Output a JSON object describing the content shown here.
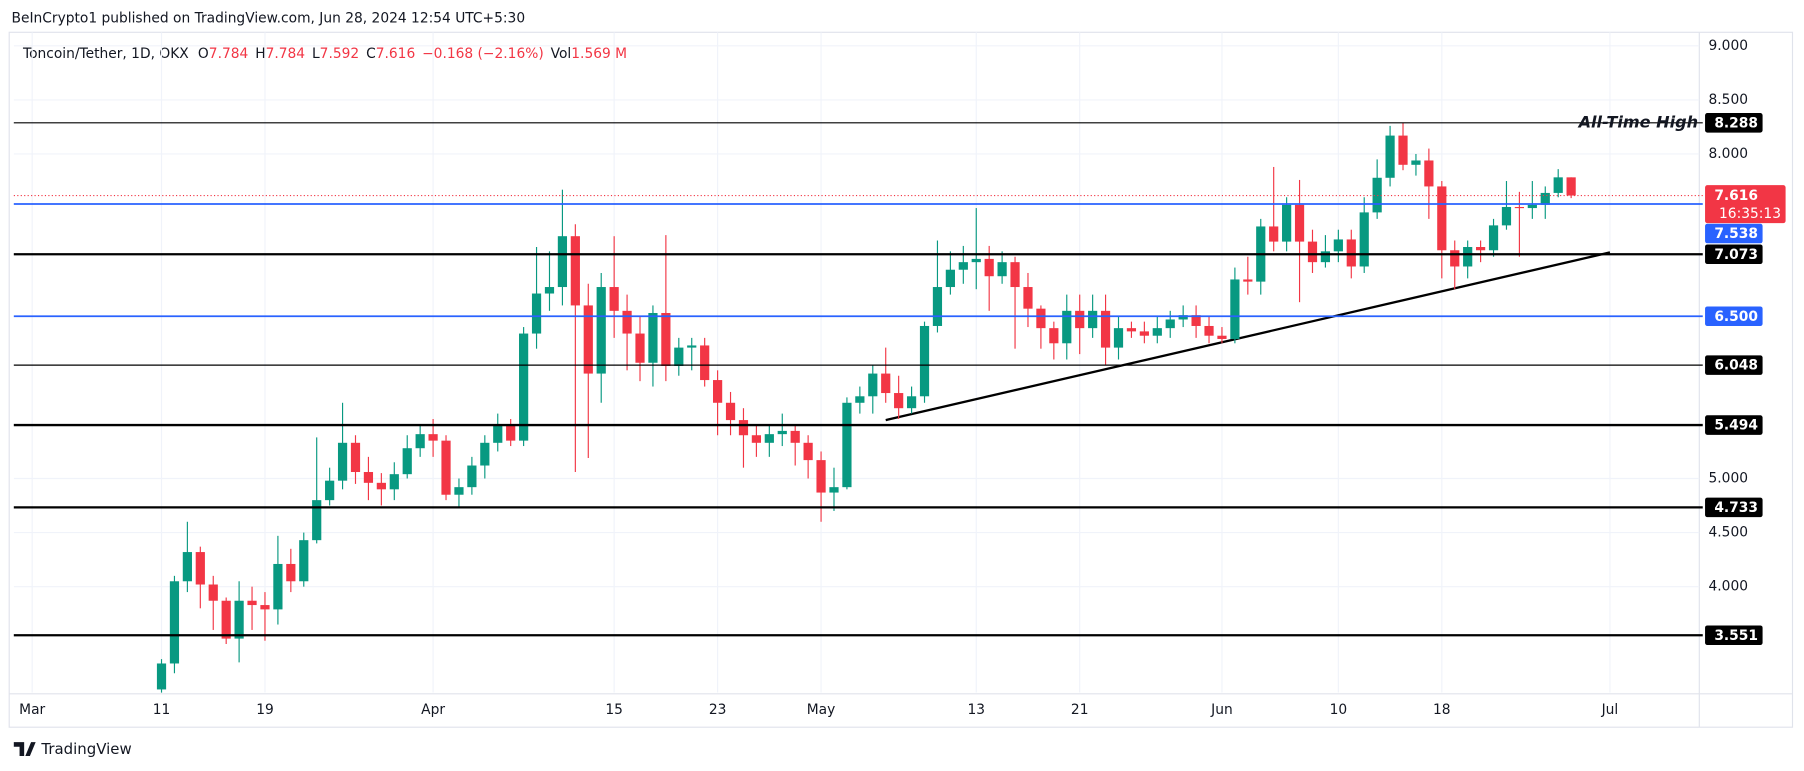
{
  "header": "BeInCrypto1 published on TradingView.com, Jun 28, 2024 12:54 UTC+5:30",
  "footer": "TradingView",
  "chart_data": {
    "type": "candlestick",
    "legend": {
      "symbol": "Toncoin/Tether, 1D, OKX",
      "o": "O",
      "h": "H",
      "l": "L",
      "c": "C",
      "change": "−0.168 (−2.16%)",
      "vol_label": "Vol",
      "volume": "1.569 M"
    },
    "up_color": "#089981",
    "down_color": "#f23645",
    "x": [
      "2024-03-11",
      "2024-03-12",
      "2024-03-13",
      "2024-03-14",
      "2024-03-15",
      "2024-03-16",
      "2024-03-17",
      "2024-03-18",
      "2024-03-19",
      "2024-03-20",
      "2024-03-21",
      "2024-03-22",
      "2024-03-23",
      "2024-03-24",
      "2024-03-25",
      "2024-03-26",
      "2024-03-27",
      "2024-03-28",
      "2024-03-29",
      "2024-03-30",
      "2024-03-31",
      "2024-04-01",
      "2024-04-02",
      "2024-04-03",
      "2024-04-04",
      "2024-04-05",
      "2024-04-06",
      "2024-04-07",
      "2024-04-08",
      "2024-04-09",
      "2024-04-10",
      "2024-04-11",
      "2024-04-12",
      "2024-04-13",
      "2024-04-14",
      "2024-04-15",
      "2024-04-16",
      "2024-04-17",
      "2024-04-18",
      "2024-04-19",
      "2024-04-20",
      "2024-04-21",
      "2024-04-22",
      "2024-04-23",
      "2024-04-24",
      "2024-04-25",
      "2024-04-26",
      "2024-04-27",
      "2024-04-28",
      "2024-04-29",
      "2024-04-30",
      "2024-05-01",
      "2024-05-02",
      "2024-05-03",
      "2024-05-04",
      "2024-05-05",
      "2024-05-06",
      "2024-05-07",
      "2024-05-08",
      "2024-05-09",
      "2024-05-10",
      "2024-05-11",
      "2024-05-12",
      "2024-05-13",
      "2024-05-14",
      "2024-05-15",
      "2024-05-16",
      "2024-05-17",
      "2024-05-18",
      "2024-05-19",
      "2024-05-20",
      "2024-05-21",
      "2024-05-22",
      "2024-05-23",
      "2024-05-24",
      "2024-05-25",
      "2024-05-26",
      "2024-05-27",
      "2024-05-28",
      "2024-05-29",
      "2024-05-30",
      "2024-05-31",
      "2024-06-01",
      "2024-06-02",
      "2024-06-03",
      "2024-06-04",
      "2024-06-05",
      "2024-06-06",
      "2024-06-07",
      "2024-06-08",
      "2024-06-09",
      "2024-06-10",
      "2024-06-11",
      "2024-06-12",
      "2024-06-13",
      "2024-06-14",
      "2024-06-15",
      "2024-06-16",
      "2024-06-17",
      "2024-06-18",
      "2024-06-19",
      "2024-06-20",
      "2024-06-21",
      "2024-06-22",
      "2024-06-23",
      "2024-06-24",
      "2024-06-25",
      "2024-06-26",
      "2024-06-27",
      "2024-06-28"
    ],
    "open": [
      3.05,
      3.29,
      4.05,
      4.32,
      4.02,
      3.87,
      3.52,
      3.87,
      3.83,
      3.79,
      4.21,
      4.05,
      4.43,
      4.8,
      4.98,
      5.33,
      5.06,
      4.96,
      4.9,
      5.04,
      5.28,
      5.41,
      5.35,
      4.85,
      4.92,
      5.12,
      5.33,
      5.49,
      5.35,
      6.34,
      6.71,
      6.77,
      7.24,
      6.6,
      5.97,
      6.77,
      6.55,
      6.34,
      6.07,
      6.53,
      6.04,
      6.21,
      6.23,
      5.91,
      5.7,
      5.54,
      5.4,
      5.33,
      5.41,
      5.44,
      5.33,
      5.17,
      4.87,
      4.92,
      5.7,
      5.76,
      5.97,
      5.79,
      5.65,
      5.76,
      6.41,
      6.77,
      6.93,
      7.0,
      7.03,
      6.87,
      7.0,
      6.77,
      6.57,
      6.39,
      6.25,
      6.55,
      6.39,
      6.55,
      6.21,
      6.39,
      6.36,
      6.32,
      6.39,
      6.47,
      6.51,
      6.41,
      6.32,
      6.29,
      6.84,
      6.82,
      7.33,
      7.19,
      7.53,
      7.19,
      7.0,
      7.1,
      7.21,
      6.96,
      7.46,
      7.78,
      8.17,
      7.9,
      7.94,
      7.7,
      7.11,
      6.96,
      7.14,
      7.11,
      7.34,
      7.51,
      7.5,
      7.53,
      7.64,
      7.784
    ],
    "high": [
      3.33,
      4.1,
      4.6,
      4.37,
      4.1,
      3.9,
      4.05,
      4.0,
      3.95,
      4.47,
      4.35,
      4.5,
      5.38,
      5.1,
      5.7,
      5.4,
      5.2,
      5.05,
      5.15,
      5.4,
      5.5,
      5.55,
      5.4,
      5.0,
      5.2,
      5.4,
      5.6,
      5.55,
      6.4,
      7.14,
      7.1,
      7.67,
      7.35,
      6.8,
      6.9,
      7.24,
      6.7,
      6.5,
      6.6,
      7.25,
      6.3,
      6.3,
      6.3,
      6.0,
      5.8,
      5.65,
      5.5,
      5.5,
      5.6,
      5.5,
      5.4,
      5.25,
      5.1,
      5.75,
      5.85,
      6.05,
      6.21,
      5.95,
      5.85,
      6.45,
      7.2,
      7.1,
      7.15,
      7.5,
      7.15,
      7.1,
      7.05,
      6.9,
      6.6,
      6.45,
      6.7,
      6.7,
      6.7,
      6.7,
      6.5,
      6.45,
      6.45,
      6.5,
      6.55,
      6.6,
      6.6,
      6.5,
      6.4,
      6.95,
      7.05,
      7.4,
      7.88,
      7.6,
      7.76,
      7.3,
      7.25,
      7.3,
      7.3,
      7.6,
      7.95,
      8.26,
      8.29,
      8.0,
      8.05,
      7.75,
      7.2,
      7.2,
      7.2,
      7.4,
      7.75,
      7.65,
      7.75,
      7.7,
      7.86,
      7.784
    ],
    "low": [
      2.95,
      3.2,
      3.95,
      3.8,
      3.6,
      3.47,
      3.3,
      3.6,
      3.5,
      3.65,
      3.95,
      4.0,
      4.4,
      4.75,
      4.9,
      4.95,
      4.8,
      4.75,
      4.8,
      5.0,
      5.2,
      5.2,
      4.8,
      4.74,
      4.85,
      5.0,
      5.25,
      5.3,
      5.3,
      6.2,
      6.55,
      6.6,
      5.06,
      5.19,
      5.7,
      6.3,
      6.0,
      5.9,
      5.85,
      5.9,
      5.95,
      6.0,
      5.85,
      5.4,
      5.4,
      5.1,
      5.2,
      5.2,
      5.3,
      5.12,
      5.0,
      4.6,
      4.7,
      4.9,
      5.6,
      5.6,
      5.7,
      5.55,
      5.6,
      5.7,
      6.35,
      6.7,
      6.8,
      6.75,
      6.55,
      6.8,
      6.2,
      6.4,
      6.2,
      6.1,
      6.1,
      6.15,
      6.3,
      6.05,
      6.1,
      6.3,
      6.25,
      6.25,
      6.3,
      6.4,
      6.3,
      6.25,
      6.25,
      6.25,
      6.7,
      6.7,
      7.1,
      7.1,
      6.63,
      6.9,
      6.95,
      7.0,
      6.85,
      6.9,
      7.4,
      7.7,
      7.85,
      7.8,
      7.4,
      6.85,
      6.75,
      6.85,
      7.0,
      7.05,
      7.3,
      7.05,
      7.4,
      7.4,
      7.6,
      7.592
    ],
    "close": [
      3.29,
      4.05,
      4.32,
      4.02,
      3.87,
      3.52,
      3.87,
      3.83,
      3.79,
      4.21,
      4.05,
      4.43,
      4.8,
      4.98,
      5.33,
      5.06,
      4.96,
      4.9,
      5.04,
      5.28,
      5.41,
      5.35,
      4.85,
      4.92,
      5.12,
      5.33,
      5.49,
      5.35,
      6.34,
      6.71,
      6.77,
      7.24,
      6.6,
      5.97,
      6.77,
      6.55,
      6.34,
      6.07,
      6.53,
      6.04,
      6.21,
      6.23,
      5.91,
      5.7,
      5.54,
      5.4,
      5.33,
      5.41,
      5.44,
      5.33,
      5.17,
      4.87,
      4.92,
      5.7,
      5.76,
      5.97,
      5.79,
      5.65,
      5.76,
      6.41,
      6.77,
      6.93,
      7.0,
      7.03,
      6.87,
      7.0,
      6.77,
      6.57,
      6.39,
      6.25,
      6.55,
      6.39,
      6.55,
      6.21,
      6.39,
      6.36,
      6.32,
      6.39,
      6.47,
      6.51,
      6.41,
      6.32,
      6.29,
      6.84,
      6.82,
      7.33,
      7.19,
      7.53,
      7.19,
      7.0,
      7.1,
      7.21,
      6.96,
      7.46,
      7.78,
      8.17,
      7.9,
      7.94,
      7.7,
      7.11,
      6.96,
      7.14,
      7.11,
      7.34,
      7.51,
      7.5,
      7.53,
      7.64,
      7.784,
      7.616
    ],
    "countdown": "16:35:13",
    "levels": [
      {
        "value": 8.288,
        "color": "#000000",
        "weight": 1,
        "annotation": "All-Time High"
      },
      {
        "value": 7.538,
        "color": "#2962ff",
        "weight": 1.5
      },
      {
        "value": 7.073,
        "color": "#000000",
        "weight": 2
      },
      {
        "value": 6.5,
        "label": "6.500",
        "color": "#2962ff",
        "weight": 1.5
      },
      {
        "value": 6.048,
        "color": "#000000",
        "weight": 1
      },
      {
        "value": 5.494,
        "color": "#000000",
        "weight": 2
      },
      {
        "value": 4.733,
        "color": "#000000",
        "weight": 2
      },
      {
        "value": 3.551,
        "color": "#000000",
        "weight": 2
      }
    ],
    "trendline": {
      "x": [
        "2024-05-06",
        "2024-07-01"
      ],
      "values": [
        5.54,
        7.09
      ],
      "color": "#000000"
    },
    "xlim": [
      "2024-02-28",
      "2024-07-08"
    ],
    "xticks": [
      {
        "value": "2024-03-01",
        "label": "Mar"
      },
      {
        "value": "2024-03-11",
        "label": "11"
      },
      {
        "value": "2024-03-19",
        "label": "19"
      },
      {
        "value": "2024-04-01",
        "label": "Apr"
      },
      {
        "value": "2024-04-15",
        "label": "15"
      },
      {
        "value": "2024-04-23",
        "label": "23"
      },
      {
        "value": "2024-05-01",
        "label": "May"
      },
      {
        "value": "2024-05-13",
        "label": "13"
      },
      {
        "value": "2024-05-21",
        "label": "21"
      },
      {
        "value": "2024-06-01",
        "label": "Jun"
      },
      {
        "value": "2024-06-10",
        "label": "10"
      },
      {
        "value": "2024-06-18",
        "label": "18"
      },
      {
        "value": "2024-07-01",
        "label": "Jul"
      }
    ],
    "ylim": [
      3.02,
      9.21
    ],
    "yticks": [
      {
        "value": 4,
        "label": "4.000"
      },
      {
        "value": 4.5,
        "label": "4.500"
      },
      {
        "value": 5,
        "label": "5.000"
      },
      {
        "value": 8,
        "label": "8.000"
      },
      {
        "value": 8.5,
        "label": "8.500"
      },
      {
        "value": 9,
        "label": "9.000"
      }
    ],
    "grid": true
  }
}
